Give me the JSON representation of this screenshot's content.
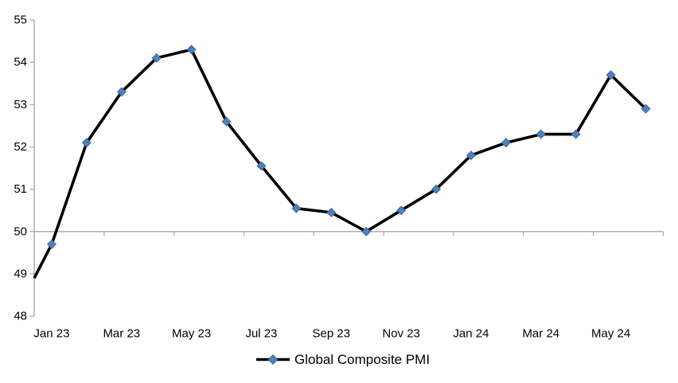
{
  "chart_data": {
    "type": "line",
    "title": "",
    "categories": [
      "Jan 23",
      "Feb 23",
      "Mar 23",
      "Apr 23",
      "May 23",
      "Jun 23",
      "Jul 23",
      "Aug 23",
      "Sep 23",
      "Oct 23",
      "Nov 23",
      "Dec 23",
      "Jan 24",
      "Feb 24",
      "Mar 24",
      "Apr 24",
      "May 24",
      "Jun 24"
    ],
    "series": [
      {
        "name": "Global Composite PMI",
        "values": [
          49.7,
          52.1,
          53.3,
          54.1,
          54.3,
          52.6,
          51.55,
          50.55,
          50.45,
          50.0,
          50.5,
          51.0,
          51.8,
          52.1,
          52.3,
          52.3,
          53.7,
          52.9
        ],
        "line_entry_value_at_left_axis": 48.9,
        "marker": "diamond"
      }
    ],
    "x_tick_labels": [
      "Jan 23",
      "Mar 23",
      "May 23",
      "Jul 23",
      "Sep 23",
      "Nov 23",
      "Jan 24",
      "Mar 24",
      "May 24"
    ],
    "x_label_every_n_categories": 2,
    "y_ticks": [
      48,
      49,
      50,
      51,
      52,
      53,
      54,
      55
    ],
    "ylim": [
      48,
      55
    ],
    "x_axis_crosses_at": 50,
    "grid": "off",
    "legend": {
      "label": "Global Composite PMI",
      "position": "bottom-center",
      "marker": "diamond"
    },
    "colors": {
      "line": "#000000",
      "marker": "#4f81bd",
      "marker_edge": "#3a689f",
      "axis": "#a6a6a6",
      "text": "#000000",
      "background": "#ffffff"
    }
  }
}
